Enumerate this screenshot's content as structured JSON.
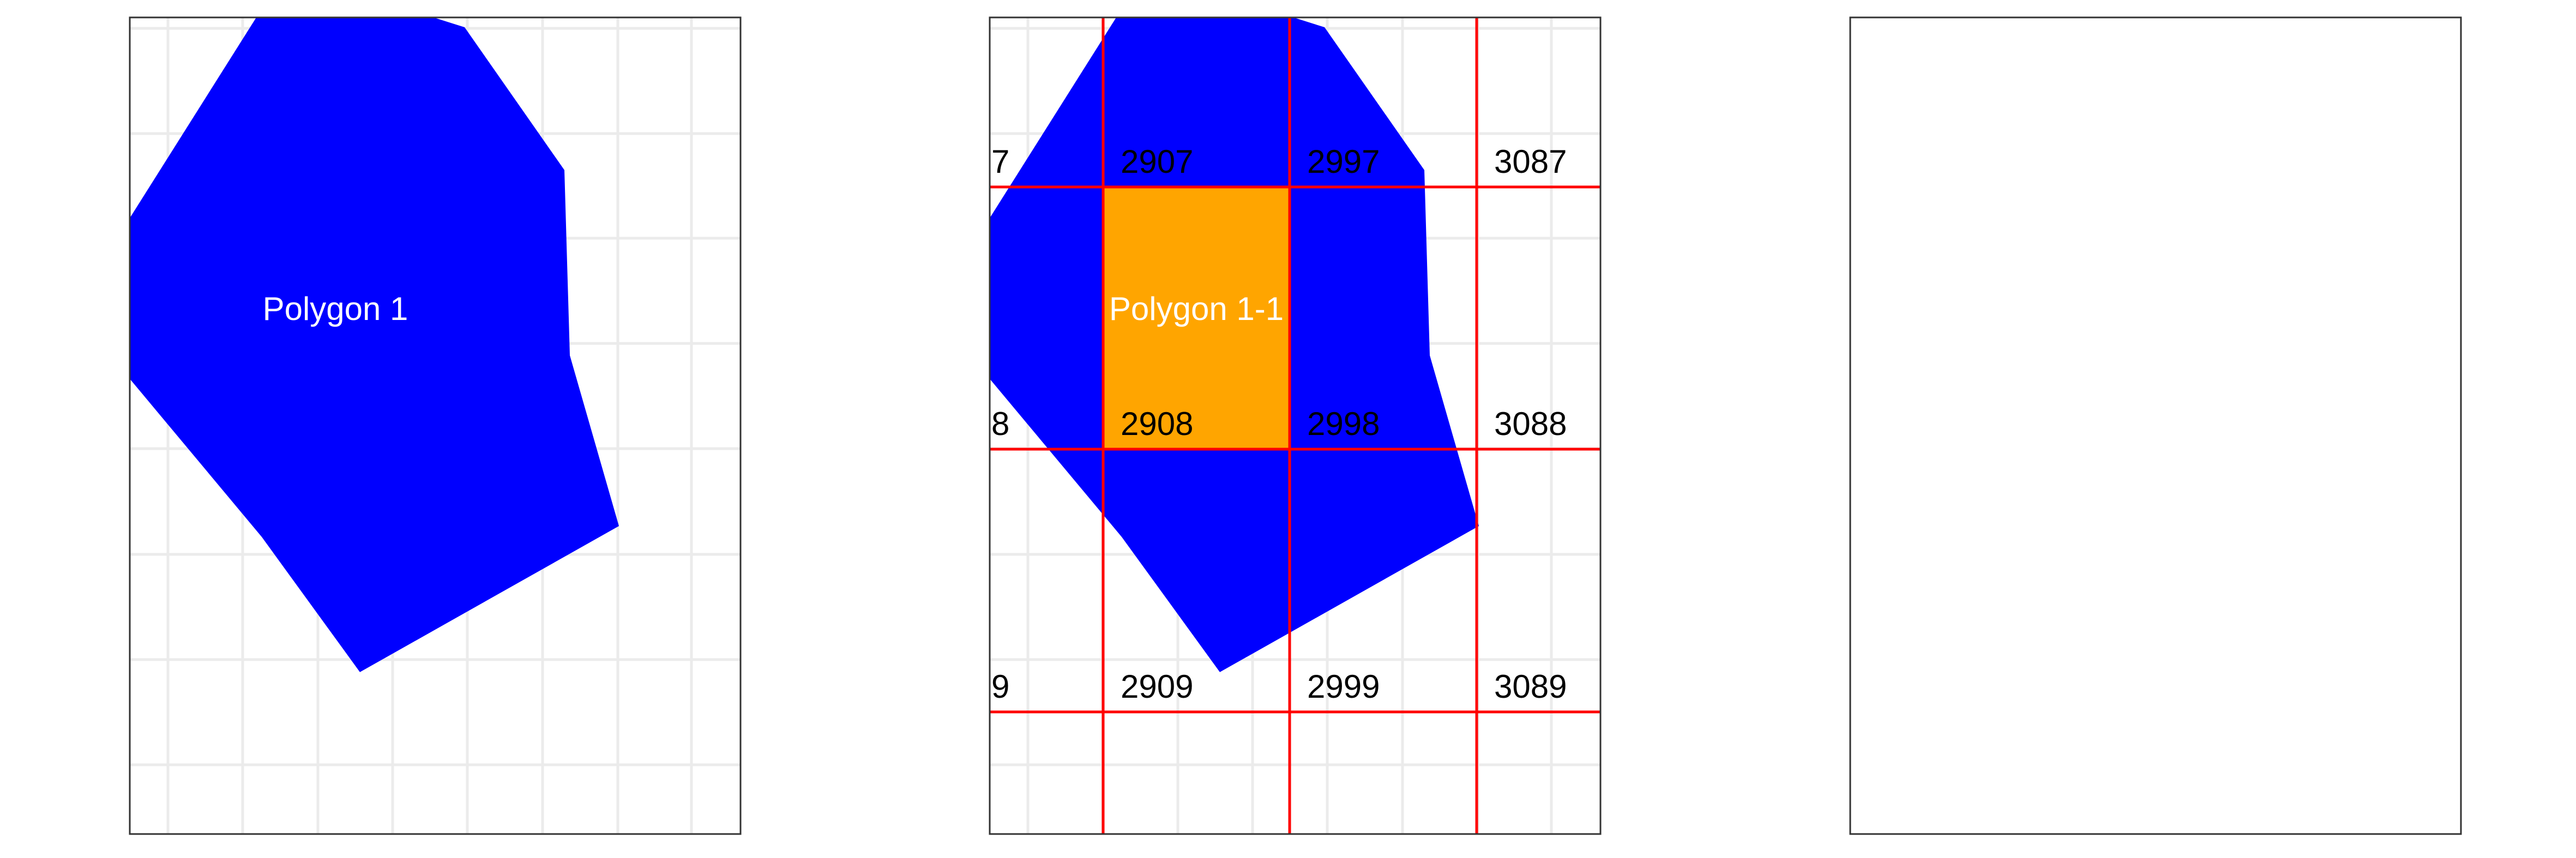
{
  "colors": {
    "background": "#ffffff",
    "panel_border": "#333333",
    "grid_line": "#ebebeb",
    "polygon_fill": "#0000ff",
    "highlight_fill": "#ffa500",
    "cell_line": "#ff0000",
    "polygon_label_text": "#ffffff",
    "cell_label_text": "#000000"
  },
  "panels": [
    {
      "polygon_label": "Polygon 1",
      "cell_labels": []
    },
    {
      "polygon_label": "Polygon 1-1",
      "cell_labels": [
        "7",
        "2907",
        "2997",
        "3087",
        "8",
        "2908",
        "2998",
        "3088",
        "9",
        "2909",
        "2999",
        "3089"
      ]
    },
    {
      "polygon_label": "",
      "cell_labels": []
    }
  ]
}
